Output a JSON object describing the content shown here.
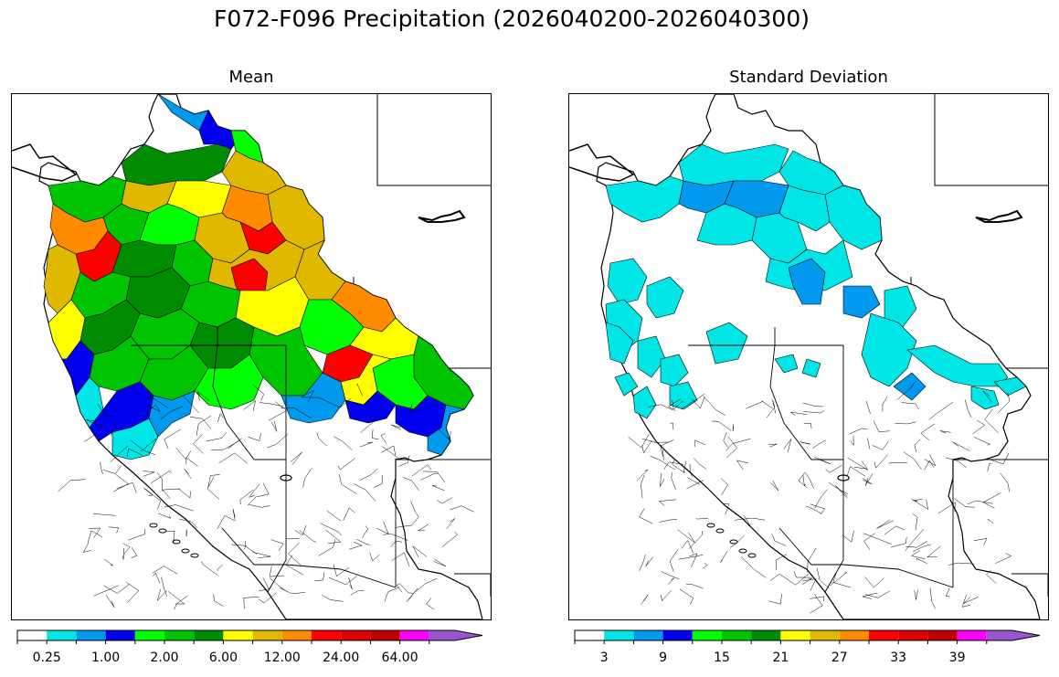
{
  "title": "F072-F096 Precipitation (2026040200-2026040300)",
  "panels": [
    {
      "title": "Mean"
    },
    {
      "title": "Standard Deviation"
    }
  ],
  "colormap": [
    "#ffffff",
    "#00e5e5",
    "#0099ee",
    "#0000ee",
    "#00ff00",
    "#00c400",
    "#008c00",
    "#ffff00",
    "#e0b800",
    "#ff8c00",
    "#ff0000",
    "#dd0000",
    "#c00000",
    "#ff00ff",
    "#9955cc"
  ],
  "colorbars": [
    {
      "ticks": [
        "0.25",
        "1.00",
        "2.00",
        "6.00",
        "12.00",
        "24.00",
        "64.00"
      ]
    },
    {
      "ticks": [
        "3",
        "9",
        "15",
        "21",
        "27",
        "33",
        "39"
      ]
    }
  ]
}
